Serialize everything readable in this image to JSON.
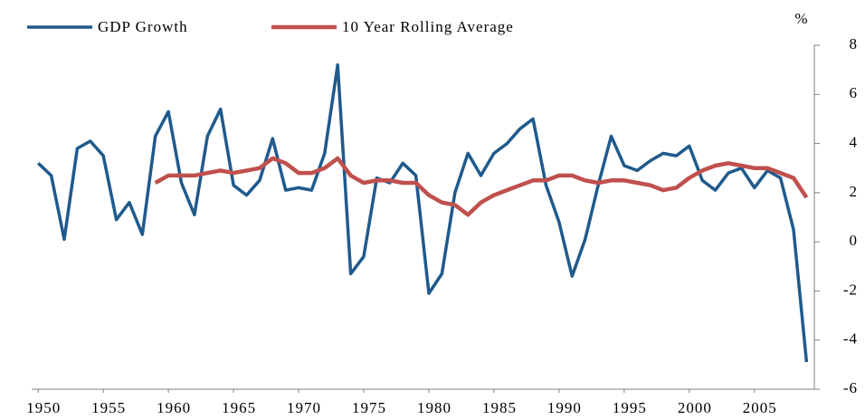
{
  "chart_data": {
    "type": "line",
    "y_unit_label": "%",
    "x": [
      1950,
      1951,
      1952,
      1953,
      1954,
      1955,
      1956,
      1957,
      1958,
      1959,
      1960,
      1961,
      1962,
      1963,
      1964,
      1965,
      1966,
      1967,
      1968,
      1969,
      1970,
      1971,
      1972,
      1973,
      1974,
      1975,
      1976,
      1977,
      1978,
      1979,
      1980,
      1981,
      1982,
      1983,
      1984,
      1985,
      1986,
      1987,
      1988,
      1989,
      1990,
      1991,
      1992,
      1993,
      1994,
      1995,
      1996,
      1997,
      1998,
      1999,
      2000,
      2001,
      2002,
      2003,
      2004,
      2005,
      2006,
      2007,
      2008,
      2009
    ],
    "series": [
      {
        "name": "GDP Growth",
        "color": "#1f5a8c",
        "values": [
          3.2,
          2.7,
          0.1,
          3.8,
          4.1,
          3.5,
          0.9,
          1.6,
          0.3,
          4.3,
          5.3,
          2.4,
          1.1,
          4.3,
          5.4,
          2.3,
          1.9,
          2.5,
          4.2,
          2.1,
          2.2,
          2.1,
          3.6,
          7.2,
          -1.3,
          -0.6,
          2.6,
          2.4,
          3.2,
          2.7,
          -2.1,
          -1.3,
          2.0,
          3.6,
          2.7,
          3.6,
          4.0,
          4.6,
          5.0,
          2.3,
          0.8,
          -1.4,
          0.1,
          2.3,
          4.3,
          3.1,
          2.9,
          3.3,
          3.6,
          3.5,
          3.9,
          2.5,
          2.1,
          2.8,
          3.0,
          2.2,
          2.9,
          2.6,
          0.5,
          -4.9
        ]
      },
      {
        "name": "10 Year Rolling Average",
        "color": "#c0504d",
        "values": [
          null,
          null,
          null,
          null,
          null,
          null,
          null,
          null,
          null,
          2.4,
          2.7,
          2.7,
          2.7,
          2.8,
          2.9,
          2.8,
          2.9,
          3.0,
          3.4,
          3.2,
          2.8,
          2.8,
          3.0,
          3.4,
          2.7,
          2.4,
          2.5,
          2.5,
          2.4,
          2.4,
          1.9,
          1.6,
          1.5,
          1.1,
          1.6,
          1.9,
          2.1,
          2.3,
          2.5,
          2.5,
          2.7,
          2.7,
          2.5,
          2.4,
          2.5,
          2.5,
          2.4,
          2.3,
          2.1,
          2.2,
          2.6,
          2.9,
          3.1,
          3.2,
          3.1,
          3.0,
          3.0,
          2.8,
          2.6,
          1.8
        ]
      }
    ],
    "xlim": [
      1949.5,
      2009.6
    ],
    "xticks": [
      1950,
      1955,
      1960,
      1965,
      1970,
      1975,
      1980,
      1985,
      1990,
      1995,
      2000,
      2005
    ],
    "ylim": [
      -6,
      8
    ],
    "yticks": [
      -6,
      -4,
      -2,
      0,
      2,
      4,
      6,
      8
    ],
    "grid": false,
    "legend": "top-left"
  }
}
